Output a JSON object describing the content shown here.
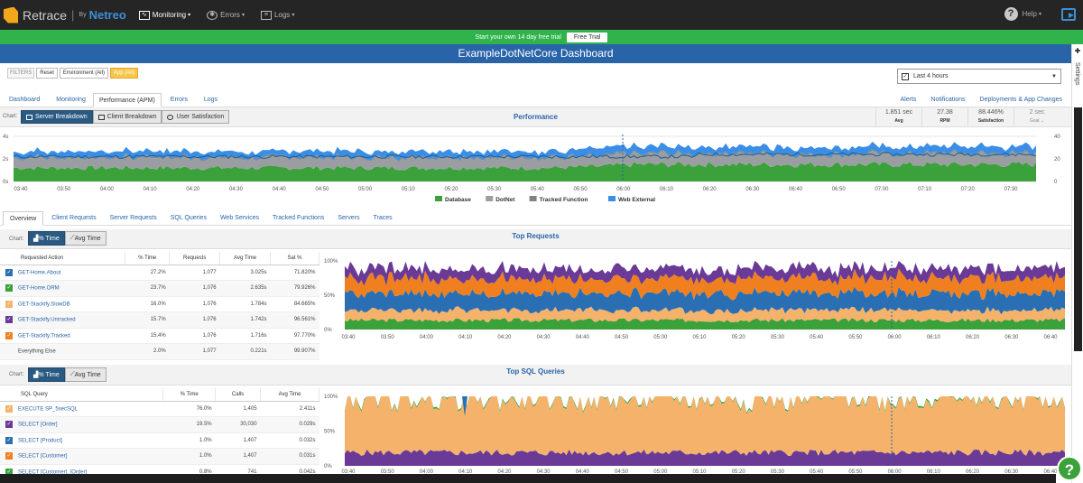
{
  "app": {
    "name": "Retrace",
    "by": "By",
    "brand": "Netreo"
  },
  "nav": {
    "items": [
      {
        "label": "Monitoring",
        "icon": "monitor-icon"
      },
      {
        "label": "Errors",
        "icon": "bug-icon"
      },
      {
        "label": "Logs",
        "icon": "document-icon"
      }
    ],
    "help": "Help"
  },
  "trial": {
    "text": "Start your own 14 day free trial",
    "button": "Free Trial"
  },
  "dashboard": {
    "title": "ExampleDotNetCore Dashboard"
  },
  "filters": {
    "label": "FILTERS",
    "reset": "Reset",
    "environment": "Environment (All)",
    "app": "App (All)"
  },
  "timerange": {
    "value": "Last 4 hours"
  },
  "page_tabs": [
    "Dashboard",
    "Monitoring",
    "Performance (APM)",
    "Errors",
    "Logs"
  ],
  "page_tabs_right": [
    "Alerts",
    "Notifications",
    "Deployments & App Changes"
  ],
  "performance": {
    "chart_label": "Chart:",
    "buttons": [
      "Server Breakdown",
      "Client Breakdown",
      "User Satisfaction"
    ],
    "title": "Performance",
    "stats": [
      {
        "value": "1.851 sec",
        "label": "Avg"
      },
      {
        "value": "27.38",
        "label": "RPM"
      },
      {
        "value": "88.446%",
        "label": "Satisfaction"
      },
      {
        "value": "2 sec",
        "label": "Goal ⌄"
      }
    ]
  },
  "inner_tabs": [
    "Overview",
    "Client Requests",
    "Server Requests",
    "SQL Queries",
    "Web Services",
    "Tracked Functions",
    "Servers",
    "Traces"
  ],
  "toggle": {
    "label": "Chart:",
    "pct": "% Time",
    "avg": "Avg Time"
  },
  "top_requests": {
    "title": "Top Requests",
    "columns": [
      "Requested Action",
      "% Time",
      "Requests",
      "Avg Time",
      "Sat %"
    ],
    "rows": [
      {
        "name": "GET-Home.About",
        "pct": "27.2%",
        "req": "1,077",
        "avg": "3.025s",
        "sat": "71.820%"
      },
      {
        "name": "GET-Home.ORM",
        "pct": "23.7%",
        "req": "1,076",
        "avg": "2.635s",
        "sat": "79.926%"
      },
      {
        "name": "GET-Stackify.SlowDB",
        "pct": "16.0%",
        "req": "1,076",
        "avg": "1.784s",
        "sat": "84.665%"
      },
      {
        "name": "GET-Stackify.Untracked",
        "pct": "15.7%",
        "req": "1,076",
        "avg": "1.742s",
        "sat": "96.561%"
      },
      {
        "name": "GET-Stackify.Tracked",
        "pct": "15.4%",
        "req": "1,076",
        "avg": "1.716s",
        "sat": "97.770%"
      },
      {
        "name": "Everything Else",
        "pct": "2.0%",
        "req": "1,077",
        "avg": "0.221s",
        "sat": "99.907%"
      }
    ]
  },
  "top_sql": {
    "title": "Top SQL Queries",
    "columns": [
      "SQL Query",
      "% Time",
      "Calls",
      "Avg Time"
    ],
    "rows": [
      {
        "name": "EXECUTE SP_5secSQL",
        "pct": "76.0%",
        "calls": "1,405",
        "avg": "2.411s"
      },
      {
        "name": "SELECT [Order]",
        "pct": "19.5%",
        "calls": "30,030",
        "avg": "0.029s"
      },
      {
        "name": "SELECT [Product]",
        "pct": "1.0%",
        "calls": "1,407",
        "avg": "0.032s"
      },
      {
        "name": "SELECT [Customer]",
        "pct": "1.0%",
        "calls": "1,407",
        "avg": "0.031s"
      },
      {
        "name": "SELECT [Customer], [Order]",
        "pct": "0.8%",
        "calls": "741",
        "avg": "0.042s"
      }
    ]
  },
  "chart_data": [
    {
      "type": "area",
      "title": "Performance",
      "x": [
        "03:40",
        "03:50",
        "04:00",
        "04:10",
        "04:20",
        "04:30",
        "04:40",
        "04:50",
        "05:00",
        "05:10",
        "05:20",
        "05:30",
        "05:40",
        "05:50",
        "06:00",
        "06:10",
        "06:20",
        "06:30",
        "06:40",
        "06:50",
        "07:00",
        "07:10",
        "07:20",
        "07:30"
      ],
      "y_left_ticks": [
        "4s",
        "2s",
        "0s"
      ],
      "y_right_ticks": [
        "40",
        "20",
        "0"
      ],
      "series": [
        {
          "name": "Database",
          "color": "#3ba13a",
          "values": [
            1.2,
            1.2,
            1.2,
            1.2,
            1.2,
            1.2,
            1.2,
            1.2,
            1.2,
            1.2,
            1.2,
            1.2,
            1.2,
            1.3,
            1.5,
            1.5,
            1.5,
            1.5,
            1.5,
            1.5,
            1.5,
            1.5,
            1.5,
            1.5
          ]
        },
        {
          "name": "DotNet",
          "color": "#9a9ea3",
          "values": [
            0.9,
            0.9,
            0.9,
            0.9,
            0.9,
            0.9,
            0.9,
            0.9,
            0.9,
            0.9,
            0.9,
            0.9,
            0.9,
            0.9,
            0.9,
            0.9,
            0.9,
            0.9,
            0.9,
            0.9,
            0.9,
            0.9,
            0.9,
            0.9
          ]
        },
        {
          "name": "Tracked Function",
          "color": "#7f8387",
          "values": [
            0.1,
            0.1,
            0.1,
            0.1,
            0.1,
            0.1,
            0.1,
            0.1,
            0.1,
            0.1,
            0.1,
            0.1,
            0.1,
            0.1,
            0.1,
            0.1,
            0.1,
            0.1,
            0.1,
            0.1,
            0.1,
            0.1,
            0.1,
            0.1
          ]
        },
        {
          "name": "Web External",
          "color": "#3a8ee6",
          "values": [
            0.5,
            0.5,
            0.5,
            0.5,
            0.5,
            0.5,
            0.5,
            0.5,
            0.5,
            0.5,
            0.5,
            0.5,
            0.5,
            0.6,
            0.6,
            0.6,
            0.6,
            0.6,
            0.6,
            0.6,
            0.6,
            0.6,
            0.6,
            0.6
          ]
        }
      ],
      "legend": "bottom"
    },
    {
      "type": "area",
      "title": "Top Requests",
      "x": [
        "03:40",
        "03:50",
        "04:00",
        "04:10",
        "04:20",
        "04:30",
        "04:40",
        "04:50",
        "05:00",
        "05:10",
        "05:20",
        "05:30",
        "05:40",
        "05:50",
        "06:00",
        "06:10",
        "06:20",
        "06:30",
        "06:40"
      ],
      "y_ticks": [
        "100%",
        "50%",
        "0%"
      ],
      "series": [
        {
          "name": "GET-Stackify.Tracked",
          "color": "#3ba13a",
          "values": [
            15,
            15,
            15,
            15,
            15,
            15,
            15,
            15,
            15,
            15,
            15,
            15,
            15,
            15,
            15,
            15,
            15,
            15,
            15
          ]
        },
        {
          "name": "GET-Stackify.SlowDB",
          "color": "#f5b26b",
          "values": [
            16,
            16,
            16,
            16,
            16,
            16,
            16,
            16,
            16,
            16,
            16,
            16,
            16,
            16,
            16,
            16,
            16,
            16,
            16
          ]
        },
        {
          "name": "GET-Home.About",
          "color": "#2a6fb3",
          "values": [
            27,
            27,
            27,
            27,
            27,
            27,
            27,
            27,
            27,
            27,
            27,
            27,
            27,
            27,
            27,
            27,
            27,
            27,
            27
          ]
        },
        {
          "name": "GET-Home.ORM",
          "color": "#f0801f",
          "values": [
            24,
            24,
            24,
            24,
            24,
            24,
            24,
            24,
            24,
            24,
            24,
            24,
            24,
            24,
            24,
            24,
            24,
            24,
            24
          ]
        },
        {
          "name": "GET-Stackify.Untracked",
          "color": "#6a3a96",
          "values": [
            16,
            16,
            16,
            16,
            16,
            16,
            16,
            16,
            16,
            16,
            16,
            16,
            16,
            16,
            16,
            16,
            16,
            16,
            16
          ]
        }
      ]
    },
    {
      "type": "area",
      "title": "Top SQL Queries",
      "x": [
        "03:40",
        "03:50",
        "04:00",
        "04:10",
        "04:20",
        "04:30",
        "04:40",
        "04:50",
        "05:00",
        "05:10",
        "05:20",
        "05:30",
        "05:40",
        "05:50",
        "06:00",
        "06:10",
        "06:20",
        "06:30",
        "06:40"
      ],
      "y_ticks": [
        "100%",
        "50%",
        "0%"
      ],
      "series": [
        {
          "name": "SELECT [Order]",
          "color": "#6a3a96",
          "values": [
            19,
            19,
            19,
            19,
            19,
            19,
            19,
            19,
            19,
            19,
            19,
            19,
            19,
            19,
            19,
            19,
            19,
            19,
            19
          ]
        },
        {
          "name": "EXECUTE SP_5secSQL",
          "color": "#f5b26b",
          "values": [
            78,
            78,
            78,
            78,
            78,
            78,
            78,
            78,
            78,
            78,
            78,
            78,
            78,
            78,
            78,
            78,
            78,
            78,
            78
          ]
        },
        {
          "name": "SELECT [Product]",
          "color": "#3ba13a",
          "values": [
            2,
            2,
            2,
            2,
            2,
            2,
            2,
            2,
            2,
            2,
            2,
            2,
            2,
            2,
            2,
            2,
            2,
            2,
            2
          ]
        }
      ]
    }
  ],
  "colors": {
    "accent": "#2a64a8",
    "green": "#3ba13a",
    "trial": "#2fb34a",
    "banner": "#2a64a8"
  },
  "row_colors": {
    "requests": [
      "#2a6fb3",
      "#3ba13a",
      "#f5b26b",
      "#6a3a96",
      "#f0801f"
    ],
    "sql": [
      "#f5b26b",
      "#6a3a96",
      "#2a6fb3",
      "#f0801f",
      "#3ba13a"
    ]
  }
}
